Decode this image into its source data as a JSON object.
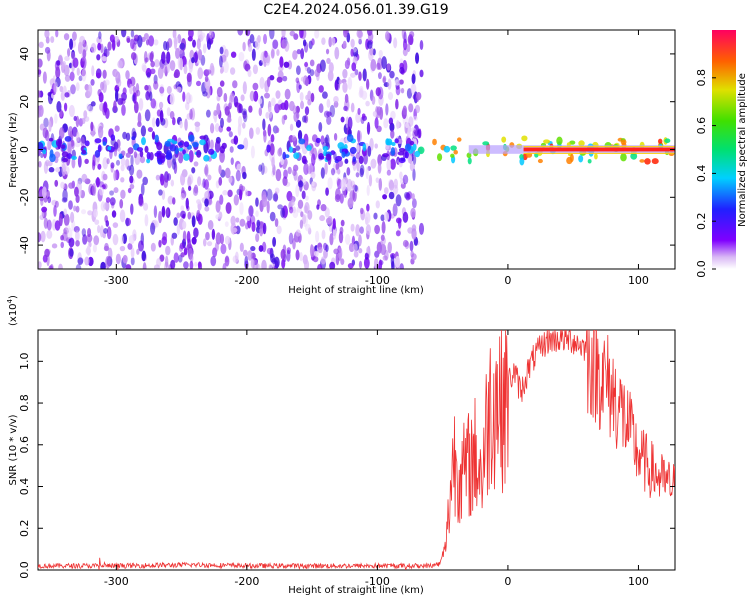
{
  "title": "C2E4.2024.056.01.39.G19",
  "chart_data": [
    {
      "type": "heatmap",
      "title": "C2E4.2024.056.01.39.G19",
      "xlabel": "Height of straight line (km)",
      "ylabel": "Frequency (Hz)",
      "xlim": [
        -360,
        128
      ],
      "ylim": [
        -50,
        50
      ],
      "xticks": [
        -300,
        -200,
        -100,
        0,
        100
      ],
      "yticks": [
        -40,
        -20,
        0,
        20,
        40
      ],
      "colorbar": {
        "label": "Normalized spectral amplitude",
        "range": [
          0,
          1
        ],
        "ticks": [
          0.0,
          0.2,
          0.4,
          0.6,
          0.8
        ],
        "colormap": "rainbow"
      },
      "features": {
        "noise_region_x": [
          -360,
          -72
        ],
        "signal_band_center_hz": 0,
        "strong_signal_from_x": -30
      },
      "grid": false
    },
    {
      "type": "line",
      "xlabel": "Height of straight line (km)",
      "ylabel": "SNR (10 * v/v)",
      "scale_note": "(x10",
      "scale_exp": "4",
      "xlim": [
        -360,
        128
      ],
      "ylim": [
        0,
        1.15
      ],
      "xticks": [
        -300,
        -200,
        -100,
        0,
        100
      ],
      "yticks": [
        0.0,
        0.2,
        0.4,
        0.6,
        0.8,
        1.0
      ],
      "series": [
        {
          "color": "#ee3333",
          "x": [
            -360,
            -300,
            -240,
            -200,
            -150,
            -120,
            -100,
            -80,
            -60,
            -52,
            -48,
            -45,
            -42,
            -38,
            -35,
            -30,
            -25,
            -20,
            -15,
            -10,
            -5,
            0,
            5,
            10,
            15,
            20,
            30,
            40,
            50,
            60,
            70,
            80,
            90,
            100,
            110,
            120,
            128
          ],
          "y": [
            0.02,
            0.02,
            0.025,
            0.02,
            0.02,
            0.02,
            0.02,
            0.02,
            0.02,
            0.03,
            0.1,
            0.3,
            0.55,
            0.5,
            0.45,
            0.5,
            0.55,
            0.45,
            0.75,
            0.85,
            0.8,
            0.9,
            0.95,
            0.85,
            0.95,
            1.02,
            1.1,
            1.11,
            1.1,
            1.06,
            0.95,
            0.85,
            0.72,
            0.55,
            0.48,
            0.42,
            0.4
          ]
        }
      ]
    }
  ]
}
